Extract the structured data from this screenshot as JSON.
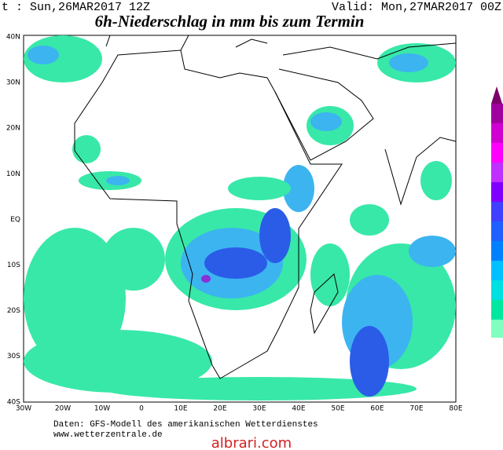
{
  "header": {
    "init": "t : Sun,26MAR2017 12Z",
    "valid": "Valid: Mon,27MAR2017 00Z",
    "title": "6h-Niederschlag in mm bis zum Termin"
  },
  "map": {
    "lat_labels": [
      "40N",
      "30N",
      "20N",
      "10N",
      "EQ",
      "10S",
      "20S",
      "30S",
      "40S"
    ],
    "lon_labels": [
      "30W",
      "20W",
      "10W",
      "0",
      "10E",
      "20E",
      "30E",
      "40E",
      "50E",
      "60E",
      "70E",
      "80E"
    ]
  },
  "footer": {
    "source": "Daten: GFS-Modell des amerikanischen Wetterdienstes",
    "url": "www.wetterzentrale.de",
    "watermark": "albrari.com"
  }
}
